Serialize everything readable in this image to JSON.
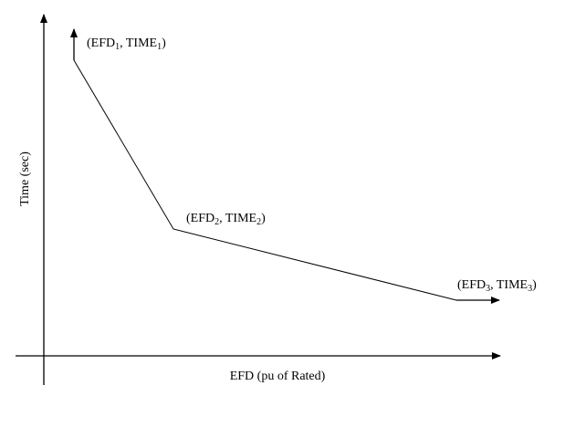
{
  "diagram": {
    "x_axis_label": "EFD (pu of Rated)",
    "y_axis_label": "Time (sec)",
    "points": [
      {
        "id": "p1",
        "prefix": "(EFD",
        "sub_a": "1",
        "mid": ", TIME",
        "sub_b": "1",
        "suffix": ")"
      },
      {
        "id": "p2",
        "prefix": "(EFD",
        "sub_a": "2",
        "mid": ", TIME",
        "sub_b": "2",
        "suffix": ")"
      },
      {
        "id": "p3",
        "prefix": "(EFD",
        "sub_a": "3",
        "mid": ", TIME",
        "sub_b": "3",
        "suffix": ")"
      }
    ],
    "colors": {
      "line": "#000000",
      "background": "#ffffff"
    }
  }
}
